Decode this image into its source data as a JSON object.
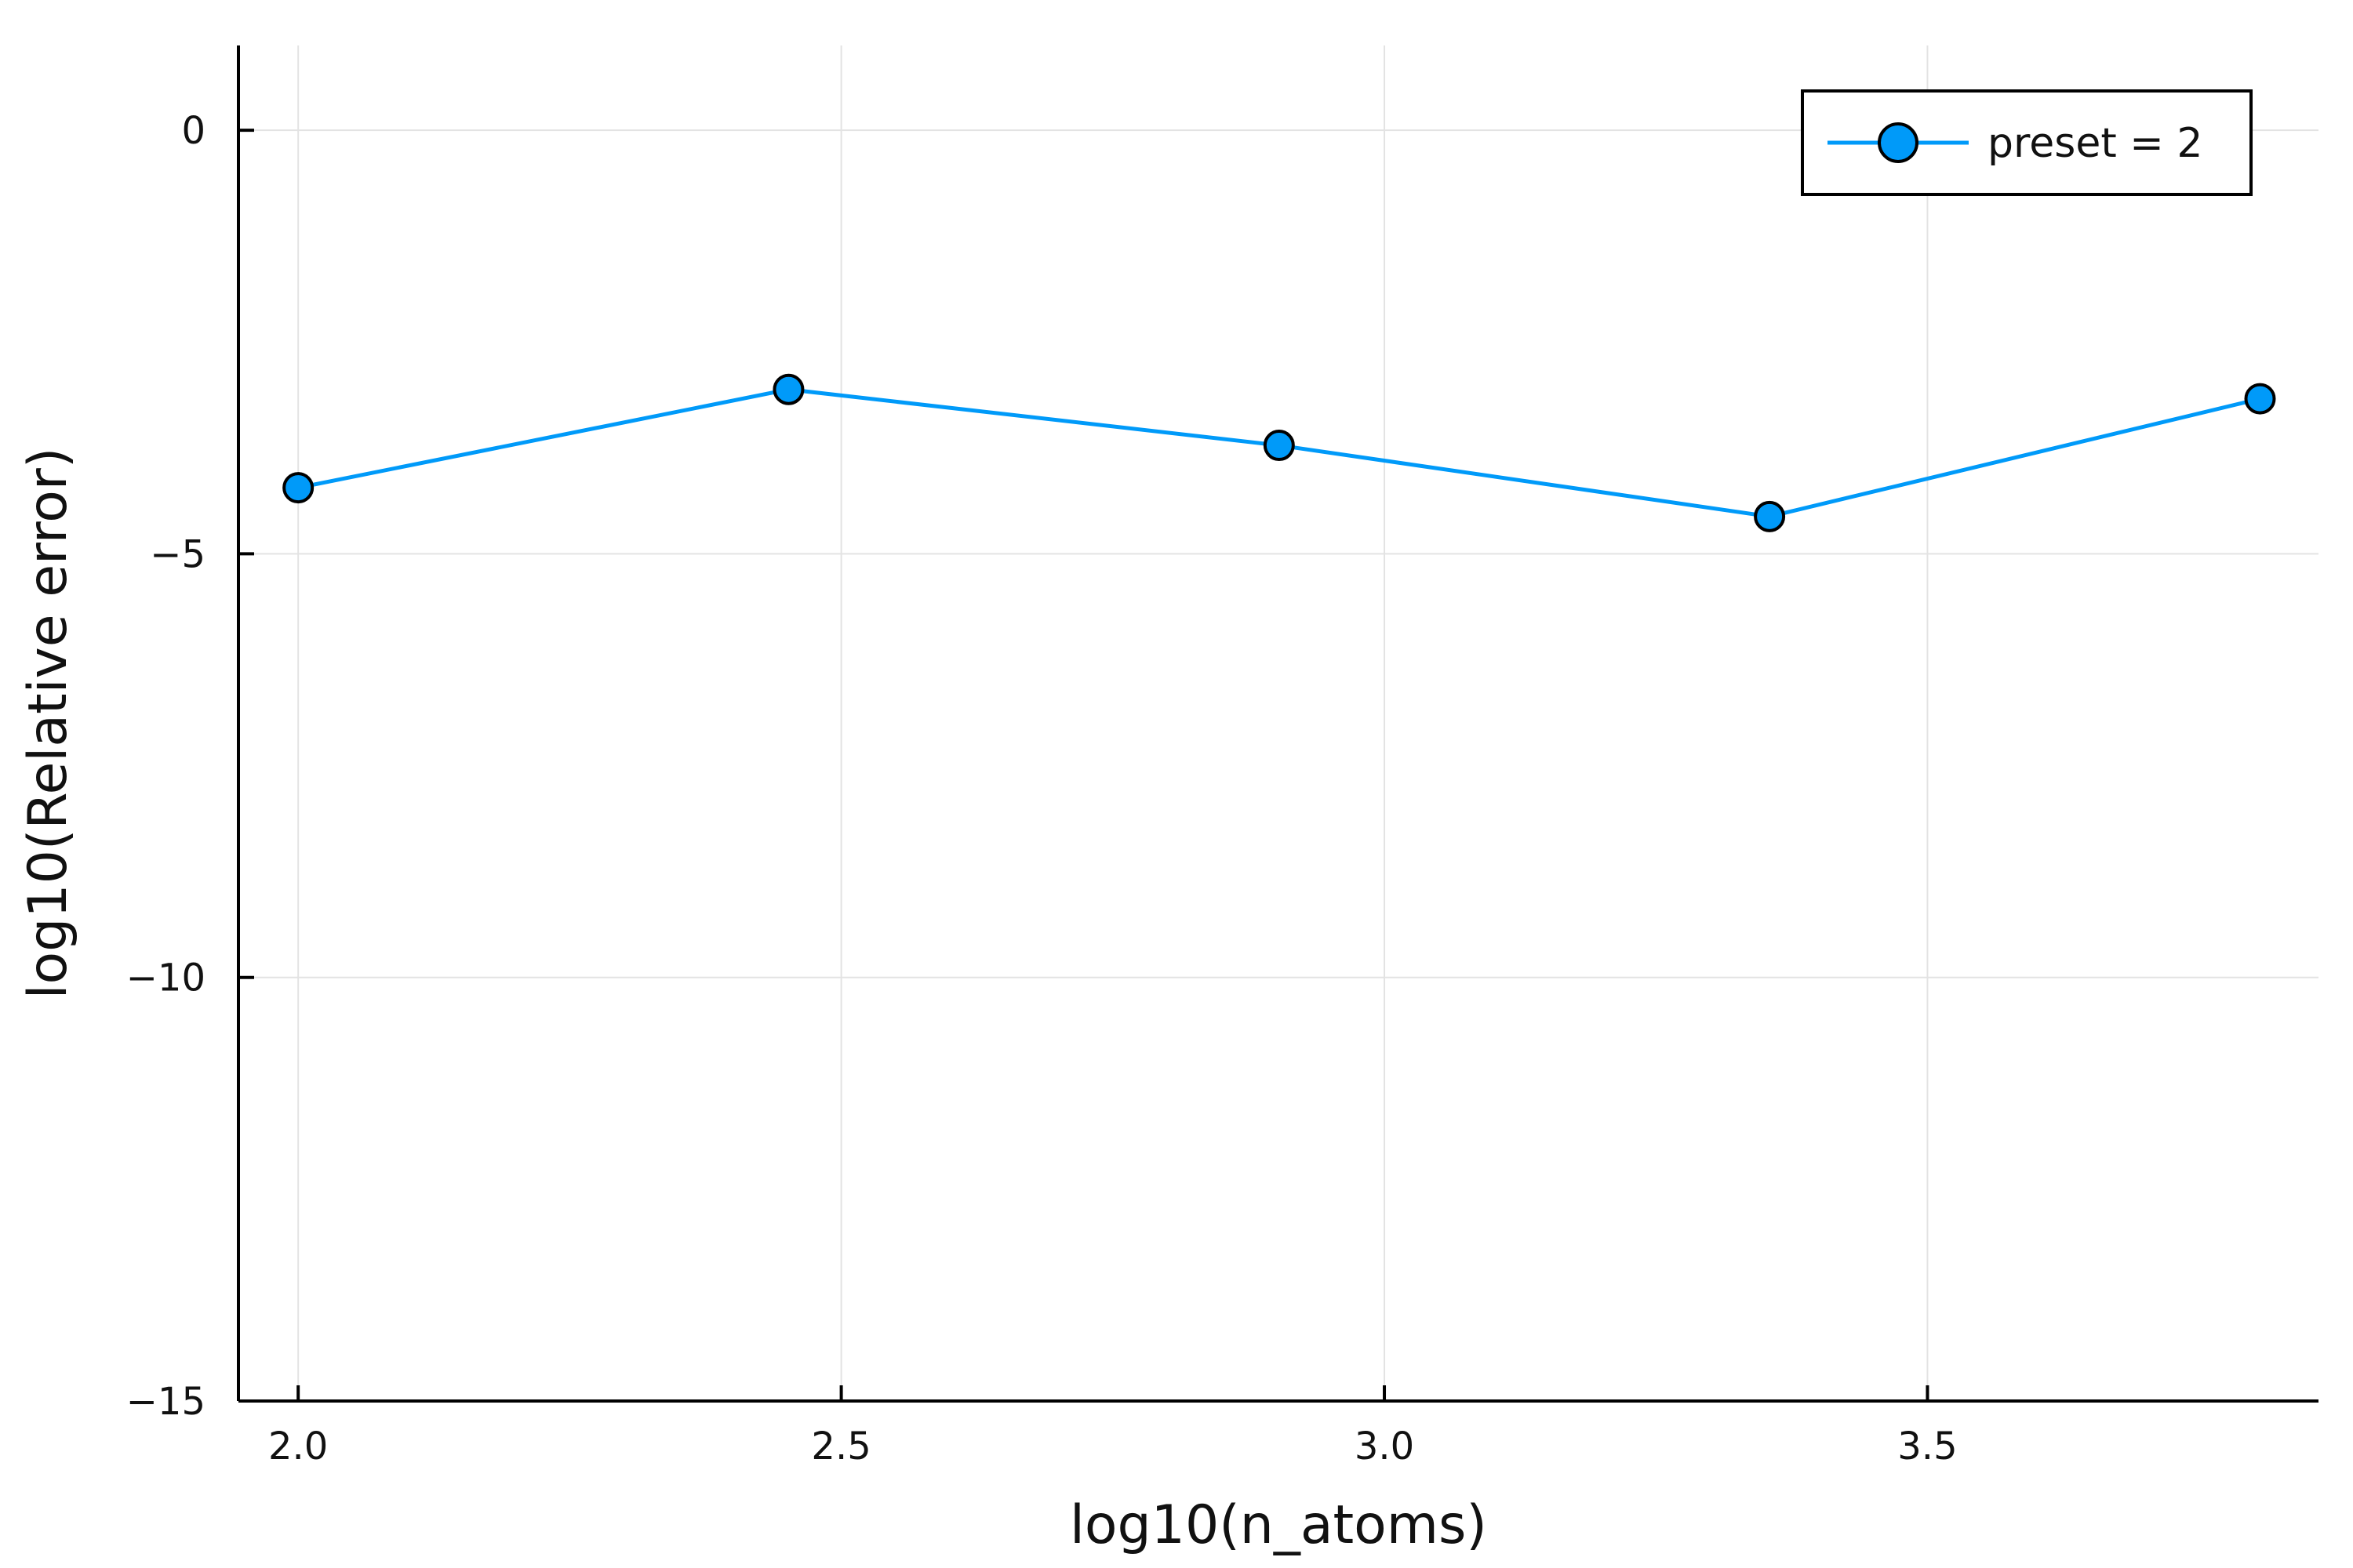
{
  "chart_data": {
    "type": "line",
    "title": "",
    "xlabel": "log10(n_atoms)",
    "ylabel": "log10(Relative error)",
    "xlim": [
      1.945,
      3.86
    ],
    "ylim": [
      -15,
      1
    ],
    "x_ticks": [
      2.0,
      2.5,
      3.0,
      3.5
    ],
    "x_tick_labels": [
      "2.0",
      "2.5",
      "3.0",
      "3.5"
    ],
    "y_ticks": [
      0,
      -5,
      -10,
      -15
    ],
    "y_tick_labels": [
      "0",
      "−5",
      "−10",
      "−15"
    ],
    "grid": true,
    "legend": {
      "position": "top-right",
      "entries": [
        "preset = 2"
      ]
    },
    "series": [
      {
        "name": "preset = 2",
        "color": "#009af9",
        "marker": "circle",
        "x": [
          2.0,
          2.4515,
          2.9031,
          3.3546,
          3.8062
        ],
        "y": [
          -4.22,
          -3.06,
          -3.72,
          -4.56,
          -3.17
        ]
      }
    ]
  }
}
